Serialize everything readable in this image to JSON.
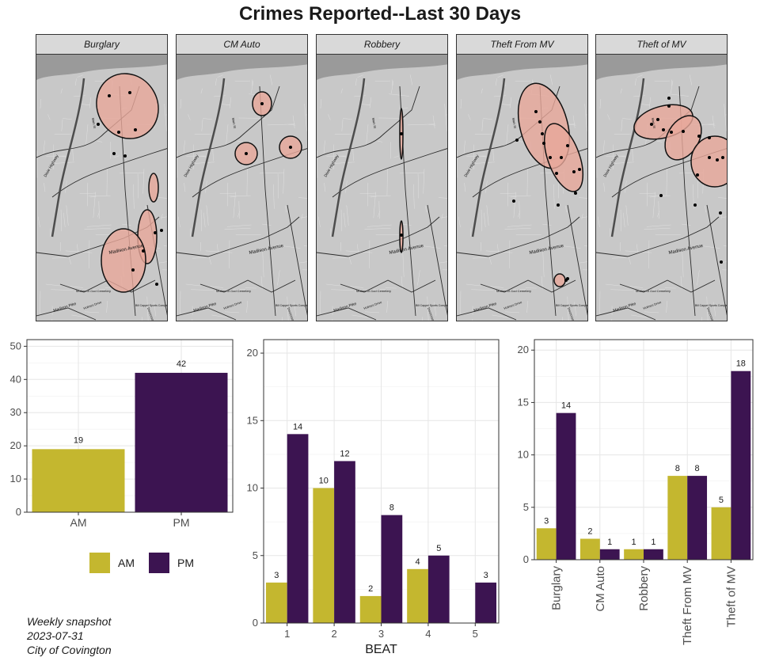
{
  "title": "Crimes Reported--Last 30 Days",
  "colors": {
    "am": "#c4b72f",
    "pm": "#3c1451",
    "hull_fill": "#e8a89a",
    "map_bg": "#c8c8c8"
  },
  "maps": {
    "panels": [
      {
        "label": "Burglary"
      },
      {
        "label": "CM Auto"
      },
      {
        "label": "Robbery"
      },
      {
        "label": "Theft From MV"
      },
      {
        "label": "Theft of MV"
      }
    ],
    "street_labels": [
      "Madison Avenue",
      "Madison Pike",
      "Dixie Highway",
      "Mother of God Cemetery",
      "Holmes Drive",
      "Decoursey Ave",
      "Main St",
      "Bill Cappel Sports Complex"
    ]
  },
  "legend": {
    "items": [
      {
        "label": "AM",
        "key": "am"
      },
      {
        "label": "PM",
        "key": "pm"
      }
    ]
  },
  "caption": {
    "line1": "Weekly snapshot",
    "line2": "2023-07-31",
    "line3": "City of Covington"
  },
  "chart_data": [
    {
      "type": "bar",
      "categories": [
        "AM",
        "PM"
      ],
      "values": [
        19,
        42
      ],
      "data_labels": [
        "19",
        "42"
      ],
      "ylim": [
        0,
        52
      ],
      "yticks": [
        0,
        10,
        20,
        30,
        40,
        50
      ],
      "xlabel": "",
      "grid": true
    },
    {
      "type": "bar",
      "categories": [
        "1",
        "2",
        "3",
        "4",
        "5"
      ],
      "series": [
        {
          "name": "AM",
          "values": [
            3,
            10,
            2,
            4,
            null
          ]
        },
        {
          "name": "PM",
          "values": [
            14,
            12,
            8,
            5,
            3
          ]
        }
      ],
      "ylim": [
        0,
        21
      ],
      "yticks": [
        0,
        5,
        10,
        15,
        20
      ],
      "xlabel": "BEAT",
      "grid": true
    },
    {
      "type": "bar",
      "categories": [
        "Burglary",
        "CM Auto",
        "Robbery",
        "Theft From MV",
        "Theft of MV"
      ],
      "series": [
        {
          "name": "AM",
          "values": [
            3,
            2,
            1,
            8,
            5
          ]
        },
        {
          "name": "PM",
          "values": [
            14,
            1,
            1,
            8,
            18
          ]
        }
      ],
      "ylim": [
        0,
        21
      ],
      "yticks": [
        0,
        5,
        10,
        15,
        20
      ],
      "xlabel": "",
      "grid": true
    }
  ]
}
